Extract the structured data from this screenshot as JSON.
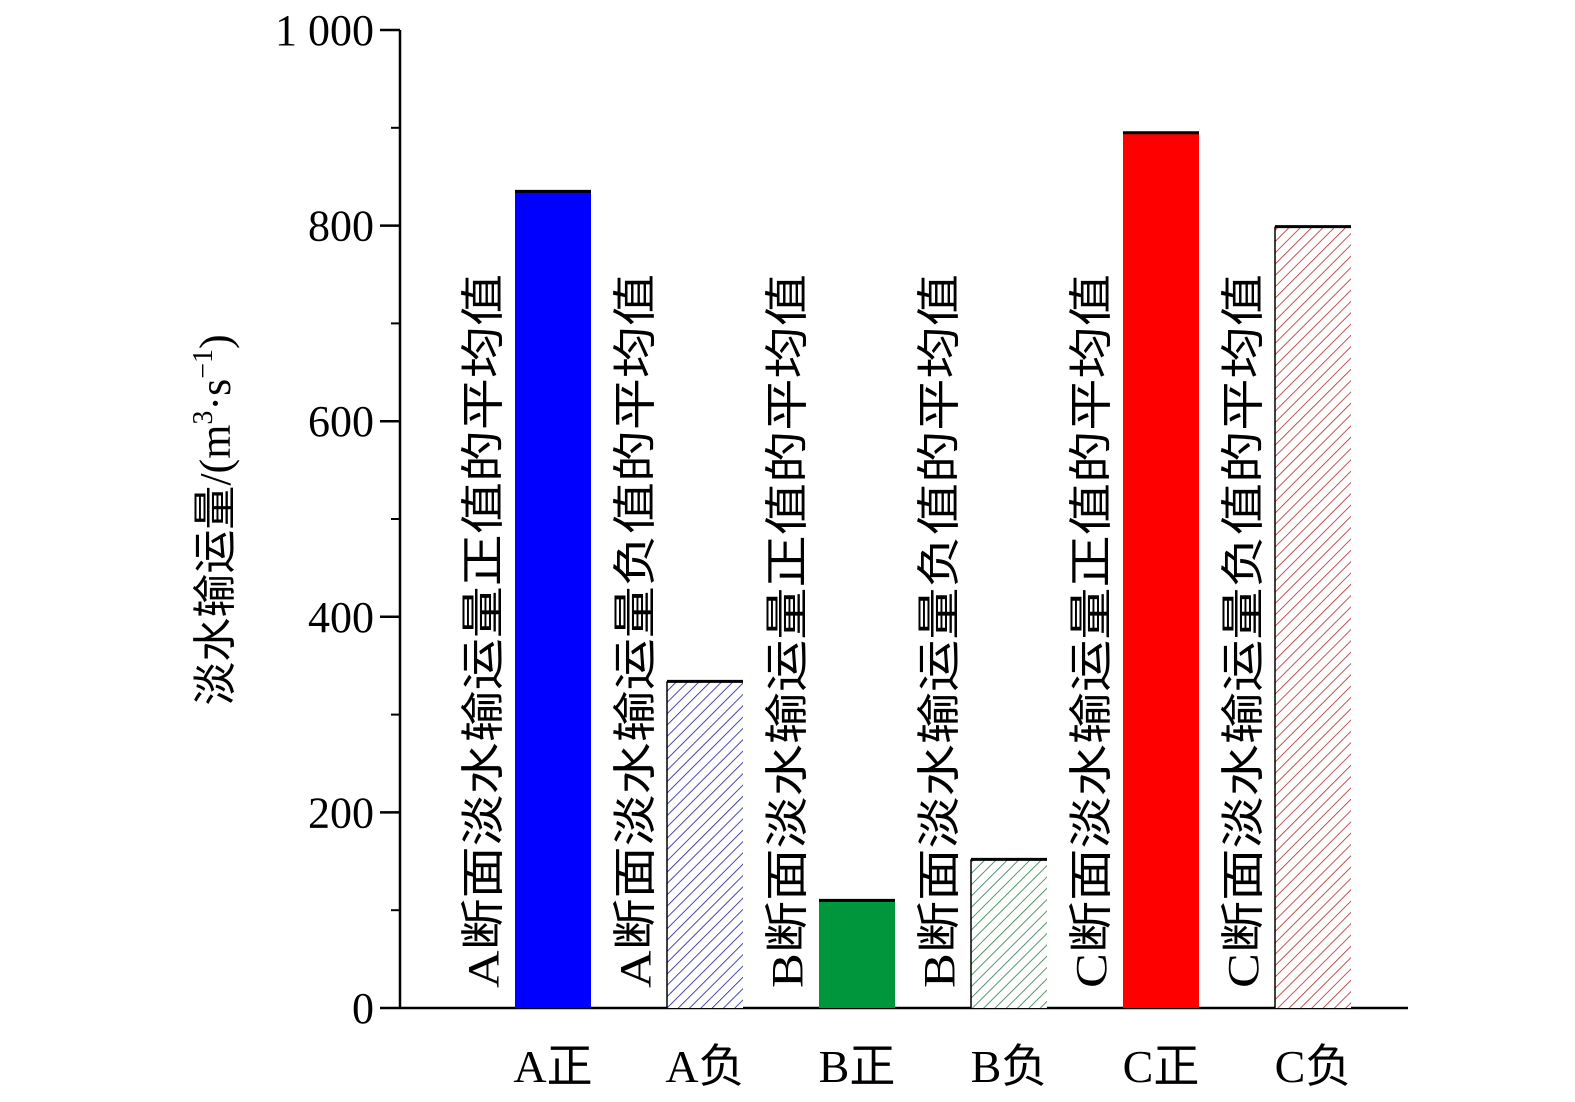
{
  "chart_data": {
    "type": "bar",
    "title": "",
    "xlabel": "",
    "ylabel": "淡水输运量/(m³·s⁻¹)",
    "ylabel_main": "淡水输运量/(m",
    "ylabel_sup1": "3",
    "ylabel_mid": "·s",
    "ylabel_sup2": "−1",
    "ylabel_end": ")",
    "ylim": [
      0,
      1000
    ],
    "yticks": [
      0,
      200,
      400,
      600,
      800,
      1000
    ],
    "ytick_labels": [
      "0",
      "200",
      "400",
      "600",
      "800",
      "1 000"
    ],
    "y_minor_step": 100,
    "categories": [
      "A正",
      "A负",
      "B正",
      "B负",
      "C正",
      "C负"
    ],
    "values": [
      835,
      334,
      110,
      152,
      895,
      799
    ],
    "bar_annotations": [
      "A断面淡水输运量正值的平均值",
      "A断面淡水输运量负值的平均值",
      "B断面淡水输运量正值的平均值",
      "B断面淡水输运量负值的平均值",
      "C断面淡水输运量正值的平均值",
      "C断面淡水输运量负值的平均值"
    ],
    "bar_colors": [
      "#0000ff",
      "#1a1aa0",
      "#00963c",
      "#2e7d4a",
      "#ff0000",
      "#b22a2a"
    ],
    "bar_fill": [
      "solid",
      "hatch",
      "solid",
      "hatch",
      "solid",
      "hatch"
    ]
  }
}
